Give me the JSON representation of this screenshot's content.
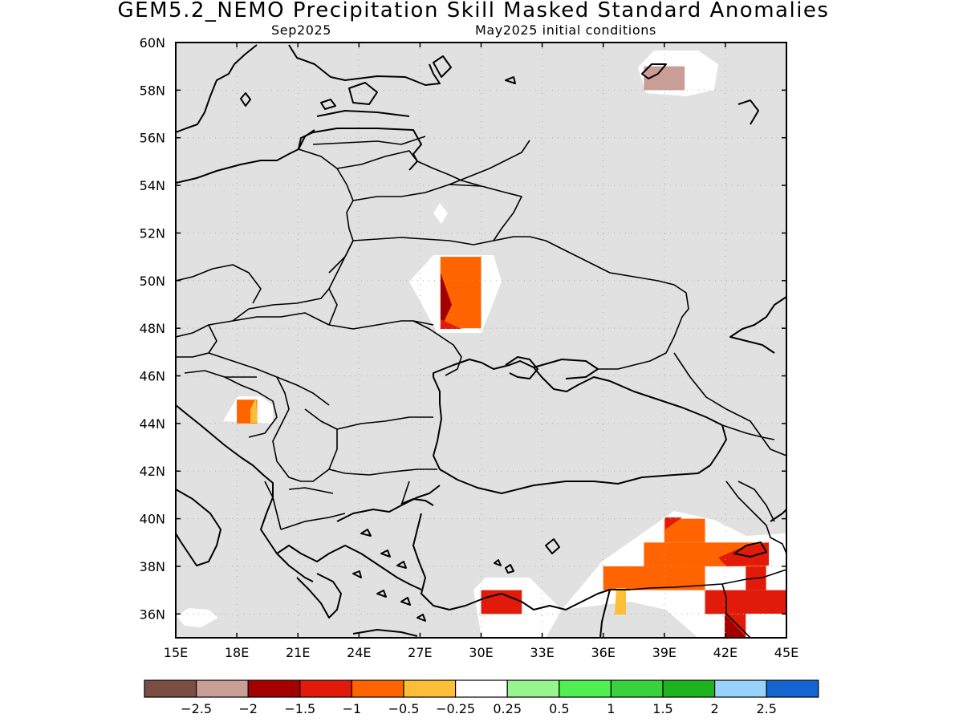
{
  "title": "GEM5.2_NEMO Precipitation Skill Masked Standard Anomalies",
  "subtitle_left": "Sep2025",
  "subtitle_right": "May2025 initial conditions",
  "map": {
    "lon_range": [
      15,
      45
    ],
    "lat_range": [
      35,
      60
    ],
    "background_color": "#e1e1e1",
    "coastline_color": "#000000",
    "gridlines": "dotted",
    "lat_labels": [
      "36N",
      "38N",
      "40N",
      "42N",
      "44N",
      "46N",
      "48N",
      "50N",
      "52N",
      "54N",
      "56N",
      "58N",
      "60N"
    ],
    "lon_labels": [
      "15E",
      "18E",
      "21E",
      "24E",
      "27E",
      "30E",
      "33E",
      "36E",
      "39E",
      "42E",
      "45E"
    ],
    "anomaly_cells": [
      {
        "lon0": 28,
        "lat0": 48,
        "lon1": 30,
        "lat1": 51,
        "category": "-1 to -0.5"
      },
      {
        "lon0": 18,
        "lat0": 44,
        "lon1": 19,
        "lat1": 45,
        "category": "-1 to -0.5"
      },
      {
        "lon0": 38,
        "lat0": 58,
        "lon1": 40,
        "lat1": 59,
        "category": "-2.5 to -2"
      },
      {
        "lon0": 30,
        "lat0": 36,
        "lon1": 32,
        "lat1": 37,
        "category": "-1.5 to -1"
      },
      {
        "lon0": 36,
        "lat0": 37,
        "lon1": 41,
        "lat1": 38,
        "category": "-1 to -0.5"
      },
      {
        "lon0": 38,
        "lat0": 38,
        "lon1": 44,
        "lat1": 39,
        "category": "-1 to -0.5"
      },
      {
        "lon0": 39,
        "lat0": 39,
        "lon1": 41,
        "lat1": 40,
        "category": "-1 to -0.5"
      },
      {
        "lon0": 41,
        "lat0": 36,
        "lon1": 45,
        "lat1": 37,
        "category": "-1.5 to -1"
      },
      {
        "lon0": 42,
        "lat0": 35,
        "lon1": 43,
        "lat1": 36,
        "category": "-1.5 to -1"
      },
      {
        "lon0": 43,
        "lat0": 37,
        "lon1": 44,
        "lat1": 38,
        "category": "-1.5 to -1"
      }
    ]
  },
  "legend": {
    "colors": [
      "#7b4e44",
      "#c89e96",
      "#a40000",
      "#e21a0a",
      "#ff6400",
      "#ffbe37",
      "#ffffff",
      "#96f58c",
      "#50f050",
      "#37d23c",
      "#1eb41e",
      "#96d2fa",
      "#1464d2"
    ],
    "labels": [
      "−2.5",
      "−2",
      "−1.5",
      "−1",
      "−0.5",
      "−0.25",
      "0.25",
      "0.5",
      "1",
      "1.5",
      "2",
      "2.5"
    ]
  }
}
